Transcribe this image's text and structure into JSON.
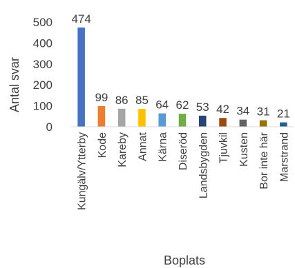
{
  "chart_data": {
    "type": "bar",
    "title": "",
    "xlabel": "Boplats",
    "ylabel": "Antal svar",
    "ylim": [
      0,
      500
    ],
    "yticks": [
      0,
      100,
      200,
      300,
      400,
      500
    ],
    "grid": false,
    "legend": "none",
    "categories": [
      "Kungälv/Ytterby",
      "Kode",
      "Kareby",
      "Annat",
      "Kärna",
      "Diseröd",
      "Landsbygden",
      "Tjuvkil",
      "Kusten",
      "Bor inte här",
      "Marstrand"
    ],
    "values": [
      474,
      99,
      86,
      85,
      64,
      62,
      53,
      42,
      34,
      31,
      21
    ],
    "colors": [
      "#4472C4",
      "#ED7D31",
      "#A5A5A5",
      "#FFC000",
      "#5B9BD5",
      "#70AD47",
      "#264478",
      "#9E480E",
      "#636363",
      "#997300",
      "#255E91"
    ],
    "axis_color": "#D9D9D9"
  }
}
